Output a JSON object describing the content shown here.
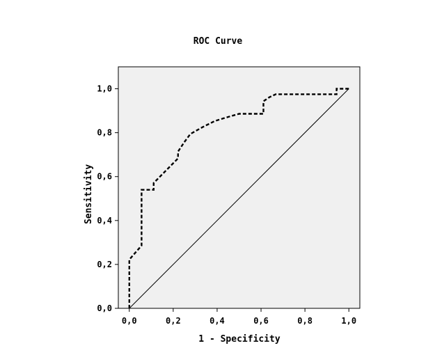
{
  "chart_data": {
    "type": "line",
    "title": "ROC Curve",
    "xlabel": "1 - Specificity",
    "ylabel": "Sensitivity",
    "xlim": [
      -0.05,
      1.05
    ],
    "ylim": [
      0,
      1.1
    ],
    "x_ticks": [
      "0,0",
      "0,2",
      "0,4",
      "0,6",
      "0,8",
      "1,0"
    ],
    "y_ticks": [
      "0,0",
      "0,2",
      "0,4",
      "0,6",
      "0,8",
      "1,0"
    ],
    "x_tick_values": [
      0,
      0.2,
      0.4,
      0.6,
      0.8,
      1.0
    ],
    "y_tick_values": [
      0,
      0.2,
      0.4,
      0.6,
      0.8,
      1.0
    ],
    "grid": false,
    "plot_background": "#f0f0f0",
    "series": [
      {
        "style": "dashed",
        "color": "#000000",
        "x": [
          0.0,
          0.0,
          0.0,
          0.056,
          0.056,
          0.111,
          0.111,
          0.222,
          0.222,
          0.25,
          0.278,
          0.333,
          0.389,
          0.444,
          0.5,
          0.611,
          0.611,
          0.639,
          0.667,
          0.944,
          0.944,
          1.0
        ],
        "y": [
          0.0,
          0.0,
          0.222,
          0.286,
          0.54,
          0.54,
          0.571,
          0.683,
          0.714,
          0.756,
          0.794,
          0.825,
          0.853,
          0.87,
          0.886,
          0.886,
          0.943,
          0.962,
          0.975,
          0.975,
          1.0,
          1.0
        ]
      },
      {
        "style": "solid",
        "color": "#000000",
        "x": [
          0.0,
          1.0
        ],
        "y": [
          0.0,
          1.0
        ]
      }
    ]
  }
}
